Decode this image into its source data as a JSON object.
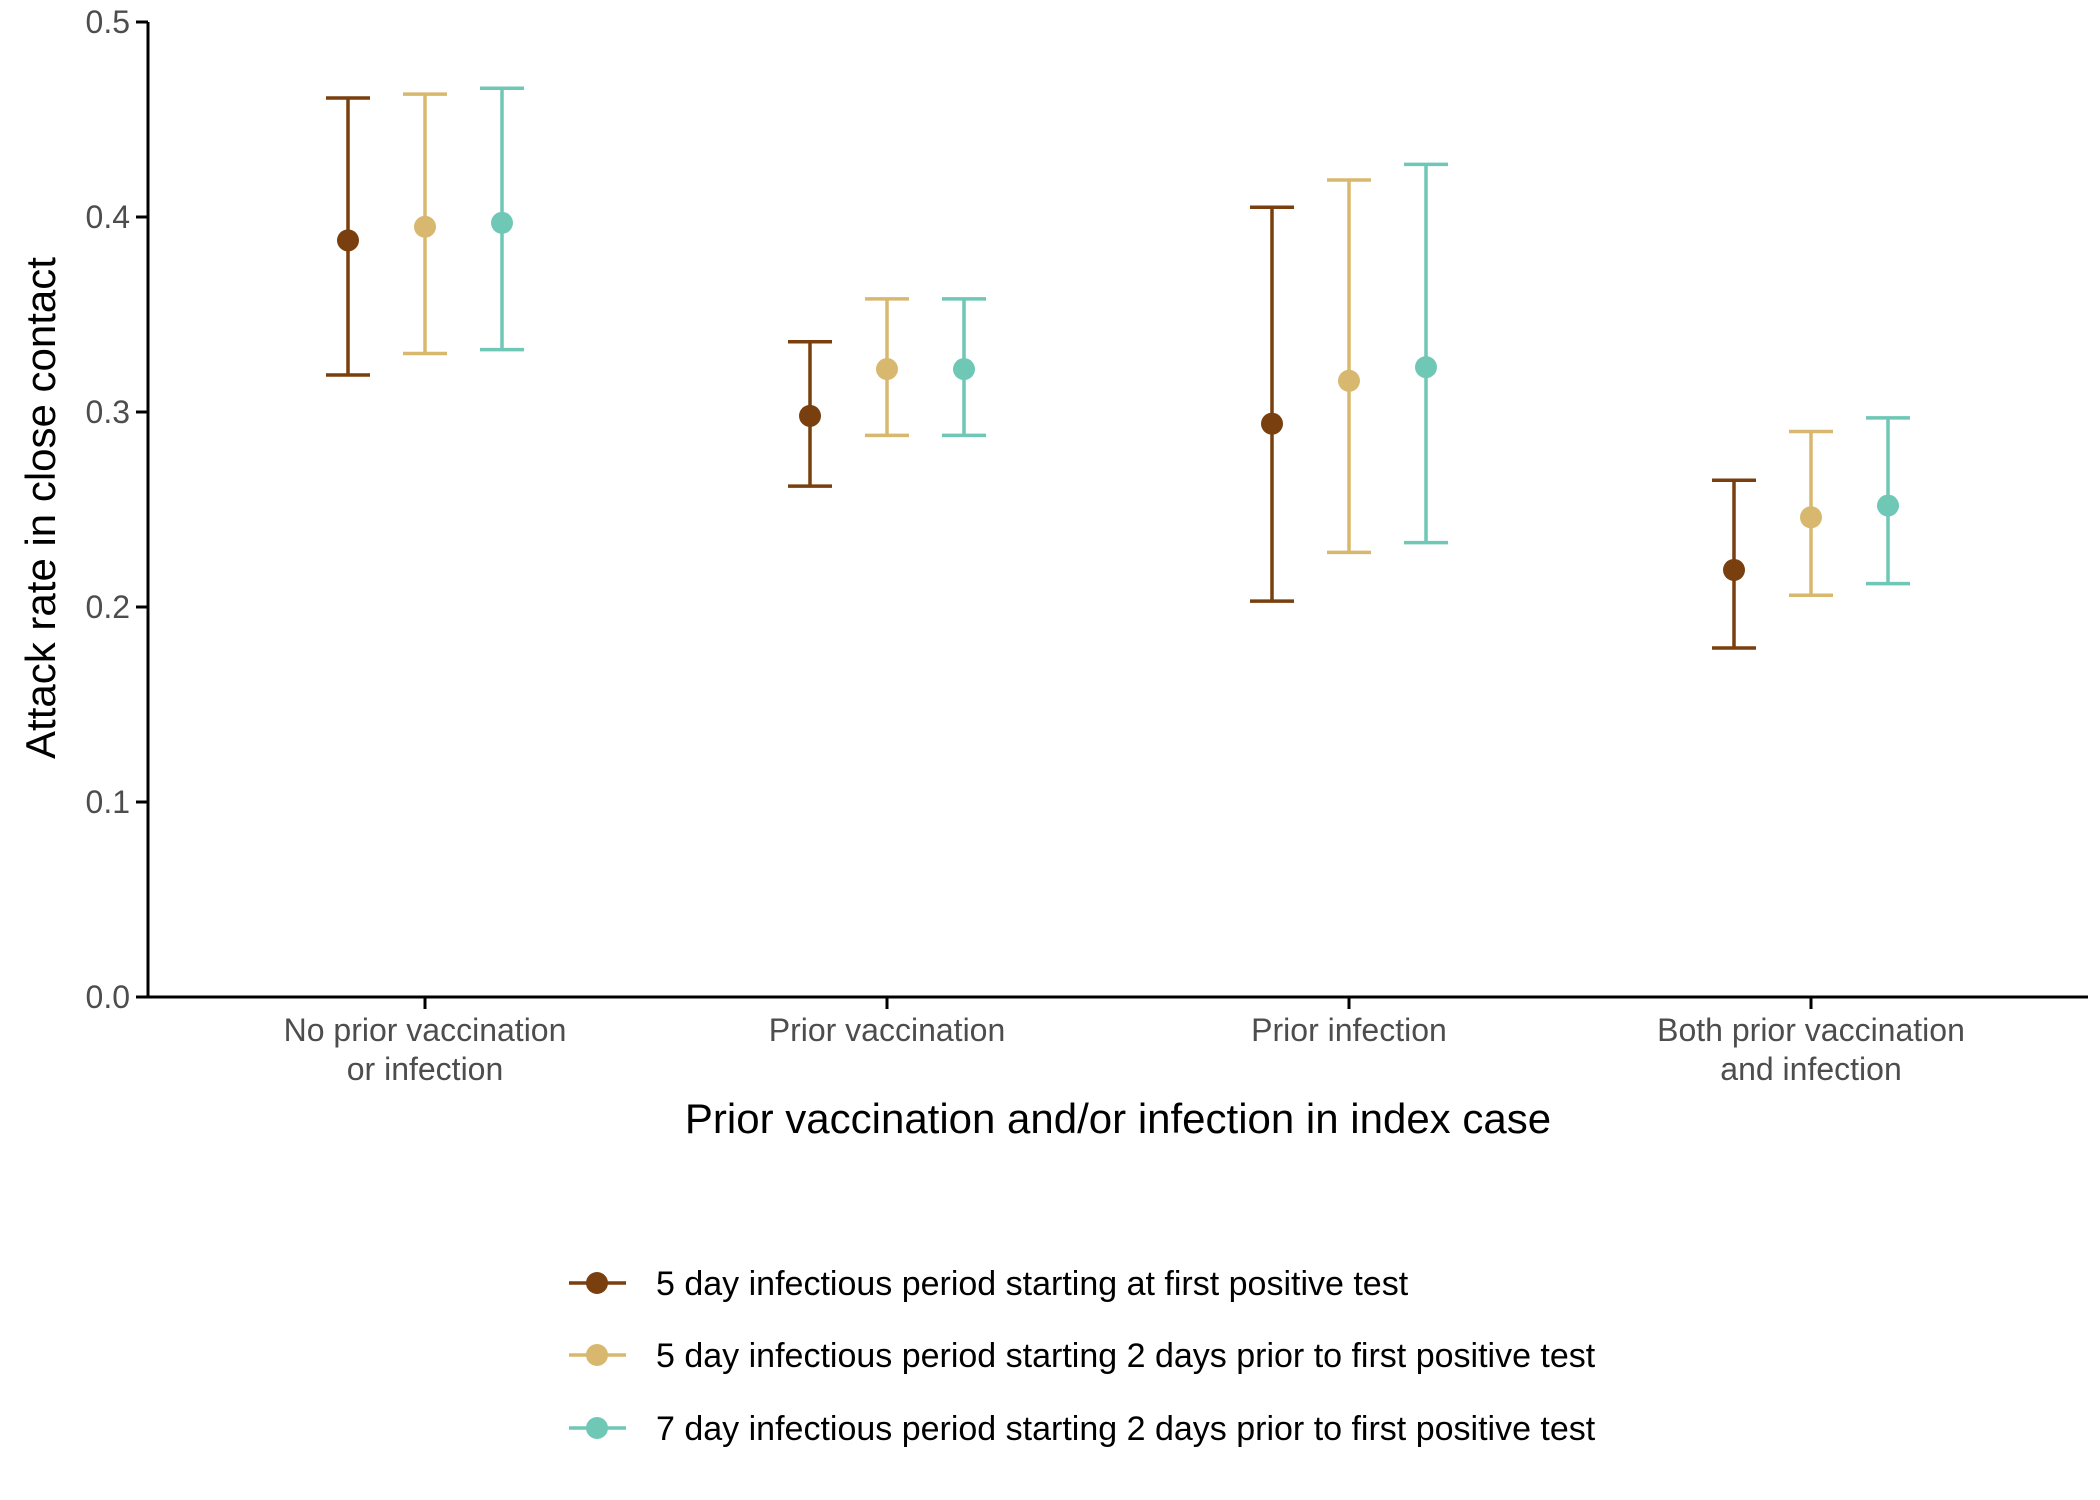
{
  "chart_data": {
    "type": "scatter",
    "subtype": "point-range (point estimate with error bars)",
    "title": "",
    "xlabel": "Prior vaccination and/or infection in index case",
    "ylabel": "Attack rate in close contact",
    "ylim": [
      0.0,
      0.5
    ],
    "yticks": [
      "0.0",
      "0.1",
      "0.2",
      "0.3",
      "0.4",
      "0.5"
    ],
    "grid": false,
    "legend_position": "bottom",
    "categories": [
      [
        "No prior vaccination",
        "or infection"
      ],
      [
        "Prior vaccination"
      ],
      [
        "Prior infection"
      ],
      [
        "Both prior vaccination",
        "and infection"
      ]
    ],
    "series": [
      {
        "name": "5 day infectious period starting at first positive test",
        "color": "#7a3f0f",
        "values": [
          0.388,
          0.298,
          0.294,
          0.219
        ],
        "lower": [
          0.319,
          0.262,
          0.203,
          0.179
        ],
        "upper": [
          0.461,
          0.336,
          0.405,
          0.265
        ]
      },
      {
        "name": "5 day infectious period starting 2 days prior to first positive test",
        "color": "#d8b86e",
        "values": [
          0.395,
          0.322,
          0.316,
          0.246
        ],
        "lower": [
          0.33,
          0.288,
          0.228,
          0.206
        ],
        "upper": [
          0.463,
          0.358,
          0.419,
          0.29
        ]
      },
      {
        "name": "7 day infectious period starting 2 days prior to first positive test",
        "color": "#6fc7b6",
        "values": [
          0.397,
          0.322,
          0.323,
          0.252
        ],
        "lower": [
          0.332,
          0.288,
          0.233,
          0.212
        ],
        "upper": [
          0.466,
          0.358,
          0.427,
          0.297
        ]
      }
    ]
  }
}
